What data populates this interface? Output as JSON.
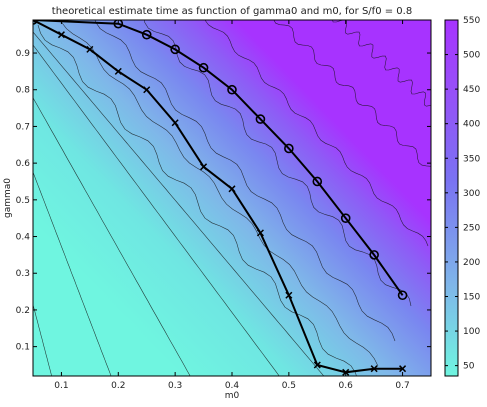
{
  "chart_data": {
    "type": "heatmap",
    "title": "theoretical estimate time as function of gamma0 and m0, for S/f0 = 0.8",
    "xlabel": "m0",
    "ylabel": "gamma0",
    "xlim": [
      0.05,
      0.75
    ],
    "ylim": [
      0.02,
      0.99
    ],
    "x_ticks": [
      "0.1",
      "0.2",
      "0.3",
      "0.4",
      "0.5",
      "0.6",
      "0.7"
    ],
    "y_ticks": [
      "0.1",
      "0.2",
      "0.3",
      "0.4",
      "0.5",
      "0.6",
      "0.7",
      "0.8",
      "0.9"
    ],
    "colorbar": {
      "min": 35,
      "max": 550,
      "ticks": [
        "50",
        "100",
        "150",
        "200",
        "250",
        "300",
        "350",
        "400",
        "450",
        "500",
        "550"
      ],
      "low_color": "#6ff5e0",
      "high_color": "#a733ff"
    },
    "grid": false,
    "series": [
      {
        "marker": "x",
        "x": [
          0.05,
          0.1,
          0.15,
          0.2,
          0.25,
          0.3,
          0.35,
          0.4,
          0.45,
          0.5,
          0.55,
          0.6,
          0.65,
          0.7
        ],
        "y": [
          0.99,
          0.95,
          0.91,
          0.85,
          0.8,
          0.71,
          0.59,
          0.53,
          0.41,
          0.24,
          0.05,
          0.03,
          0.04,
          0.04
        ]
      },
      {
        "marker": "o",
        "x": [
          0.05,
          0.2,
          0.25,
          0.3,
          0.35,
          0.4,
          0.45,
          0.5,
          0.55,
          0.6,
          0.65,
          0.7
        ],
        "y": [
          0.99,
          0.98,
          0.95,
          0.91,
          0.86,
          0.8,
          0.72,
          0.64,
          0.55,
          0.45,
          0.35,
          0.24
        ]
      }
    ]
  }
}
